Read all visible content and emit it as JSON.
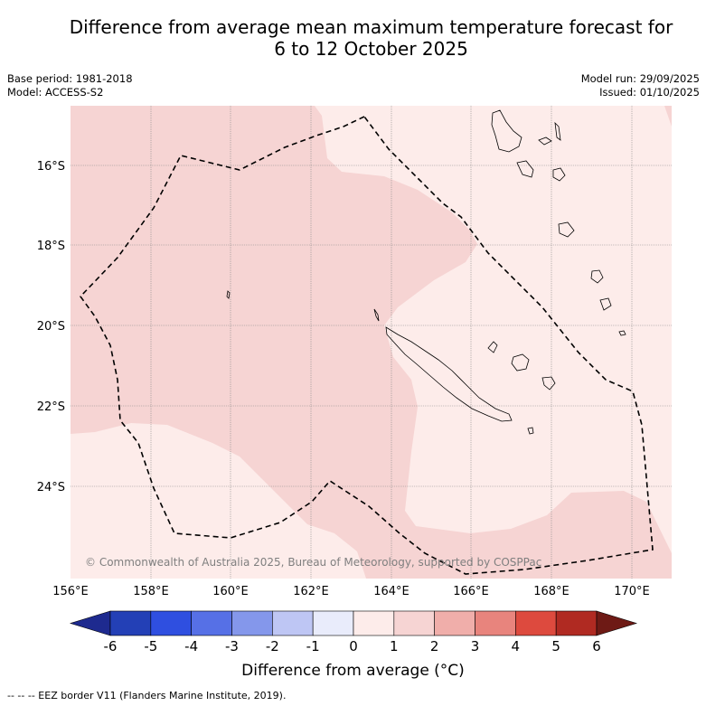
{
  "title_line1": "Difference from average mean maximum temperature forecast for",
  "title_line2": "6 to 12 October 2025",
  "base_period": "Base period: 1981-2018",
  "model": "Model: ACCESS-S2",
  "model_run": "Model run: 29/09/2025",
  "issued": "Issued: 01/10/2025",
  "copyright": "© Commonwealth of Australia 2025, Bureau of Meteorology, supported by COSPPac",
  "lat_labels": [
    "16°S",
    "18°S",
    "20°S",
    "22°S",
    "24°S"
  ],
  "lon_labels": [
    "156°E",
    "158°E",
    "160°E",
    "162°E",
    "164°E",
    "166°E",
    "168°E",
    "170°E"
  ],
  "colorbar": {
    "ticks": [
      "-6",
      "-5",
      "-4",
      "-3",
      "-2",
      "-1",
      "0",
      "1",
      "2",
      "3",
      "4",
      "5",
      "6"
    ],
    "colors": [
      "#1e2a8f",
      "#2340b6",
      "#2f4fe0",
      "#5670e6",
      "#8497eb",
      "#bec6f4",
      "#e9ecfb",
      "#fdecea",
      "#f6d4d3",
      "#f0aeaa",
      "#e8847d",
      "#dd4a3e",
      "#b02a22",
      "#6e1a15"
    ],
    "label": "Difference from average (°C)"
  },
  "legend_note": "--  --  -- EEZ border V11 (Flanders Marine Institute, 2019).",
  "chart_data": {
    "type": "map",
    "region": "New Caledonia EEZ",
    "lon_range": [
      156,
      171
    ],
    "lat_range": [
      -26.0,
      -14.5
    ],
    "anomaly_classes": [
      {
        "range": "0 to 1",
        "color": "#fdecea"
      },
      {
        "range": "1 to 2",
        "color": "#f6d4d3"
      }
    ]
  }
}
